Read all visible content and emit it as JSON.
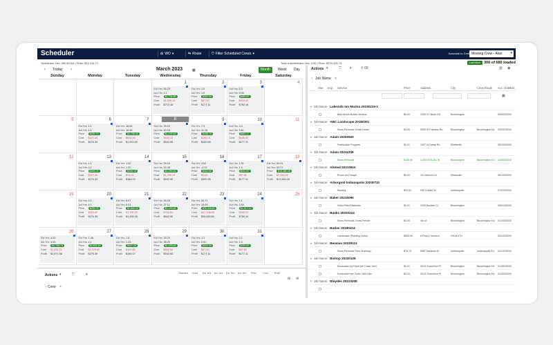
{
  "app": {
    "title": "Scheduler",
    "toolbar": {
      "wo_label": "WO",
      "route_label": "Route",
      "filter_label": "Filter Scheduled Crews"
    },
    "schedule_to_label": "Schedule to Crew",
    "crew_select_value": "Mowing Crew - Alan"
  },
  "summary": {
    "scheduled": "Scheduled:  Hrs. 460.83 hrs  |  Price: $71,214.71",
    "unscheduled": "Total Unscheduled:  Hrs. 0.00  |  Price: $734,476.74",
    "load_more": "Load More",
    "loaded": "300 of 680 loaded"
  },
  "calendar": {
    "today_label": "Today",
    "month_title": "March 2023",
    "views": [
      "Month",
      "Week",
      "Day"
    ],
    "weekdays": [
      "Sunday",
      "Monday",
      "Tuesday",
      "Wednesday",
      "Thursday",
      "Friday",
      "Saturday"
    ],
    "weeks": [
      [
        "",
        "",
        "",
        "1",
        "2",
        "3",
        "4"
      ],
      [
        "5",
        "6",
        "7",
        "8",
        "9",
        "10",
        "11"
      ],
      [
        "12",
        "13",
        "14",
        "15",
        "16",
        "17",
        "18"
      ],
      [
        "19",
        "20",
        "21",
        "22",
        "23",
        "24",
        "25"
      ],
      [
        "26",
        "27",
        "28",
        "29",
        "30",
        "31",
        ""
      ]
    ],
    "stats": {
      "0-3": [
        "55.23",
        "4.1",
        "$3,794.85",
        "$1,035.10",
        "$713.18"
      ],
      "0-4": [
        "1.9",
        "1.9",
        "$302.00",
        "$97.50",
        "$177.11"
      ],
      "0-5": [
        "8.3",
        "5.35",
        "$960.87",
        "$315.45",
        "$783.16"
      ],
      "1-1": [
        "4.1",
        "4.1",
        "$395.79",
        "$119.40",
        "$276.39"
      ],
      "1-2": [
        "16.64",
        "16.45",
        "$2,798.65",
        "$664.40",
        "$1,533.30"
      ],
      "1-3": [
        "39.29",
        "40.26",
        "$1,199.46",
        "$544.16",
        "$542.55"
      ],
      "1-4": [
        "7.9",
        "11.15",
        "$438.75",
        "$196.01",
        "$400.85"
      ],
      "1-5": [
        "3.4",
        "3.61",
        "$552.17",
        "$186.00",
        "$177.11"
      ],
      "2-1": [
        "4.1",
        "4.1",
        "$395.79",
        "$119.40",
        "$276.39"
      ],
      "2-2": [
        "1.32",
        "1.32",
        "$208.13",
        "$74.02",
        "$184.02"
      ],
      "2-3": [
        "39.29",
        "40.45",
        "$2,299.46",
        "$1,795.14",
        "$542.55"
      ],
      "2-4": [
        "3.61",
        "-0.02",
        "$402.00",
        "$0.00",
        "$400.85"
      ],
      "2-5": [
        "1.91",
        "1.9",
        "$240.87",
        "$97.50",
        "$177.11"
      ],
      "2-6": [
        "54.41",
        "52.27",
        "$15,380.00",
        "$2,495.00",
        "$12,884.00"
      ],
      "3-1": [
        "4.1",
        "4.1",
        "$395.79",
        "$119.40",
        "$276.39"
      ],
      "3-2": [
        "6.07",
        "6.03",
        "$1,800.34",
        "$1,130.20",
        "$1,435.35"
      ],
      "3-3": [
        "39.29",
        "37.11",
        "$1,199.46",
        "$764.62",
        "$542.55"
      ],
      "3-4": [
        "34.71",
        "15.09",
        "$30,446.81",
        "$17,198.00",
        "$26,483.81"
      ],
      "3-5": [
        "2.1",
        "2.55",
        "$1,317.13",
        "$530.72",
        "$785.10"
      ],
      "4-0": [
        "3.03",
        "3.03",
        "$4,758.75",
        "$1,432.22",
        "$2,871.58"
      ],
      "4-1": [
        "7.46",
        "4.1",
        "$2,502.18",
        "$2,029.50",
        "$276.39"
      ],
      "4-2": [
        "1.5",
        "1.33",
        "$427.28",
        "$100.85",
        "$184.07"
      ],
      "4-3": [
        "39.29",
        "38.20",
        "$1,199.46",
        "$552.60",
        "$542.55"
      ],
      "4-4": [
        "1.1",
        "0.92",
        "$322.00",
        "$97.50",
        "$177.11"
      ],
      "4-5": [
        "2.1",
        "2.3",
        "$240.87",
        "$97.50",
        "$177.11"
      ]
    }
  },
  "bottom": {
    "actions_label": "Actions",
    "columns": [
      "Selected",
      "Crew",
      "Est. Hrs",
      "Act. Hrs",
      "Est. Hrs",
      "Act. Hrs",
      "Price",
      "Cost",
      "Profit"
    ],
    "crew_label": "Crew"
  },
  "right": {
    "actions_label": "Actions",
    "count": "68",
    "jobname_label": "Job Name",
    "columns": [
      "Star",
      "Imp",
      "Service",
      "Price",
      "Address",
      "City",
      "Crew Route",
      "Acc. Date",
      "Est."
    ],
    "group_prefix": "Job Name:",
    "groups": [
      {
        "name": "Lakeside Inn Marina 20230215-1",
        "items": [
          {
            "service": "Bark Mulch Bustle Medium",
            "price": "$0.00",
            "address": "1000 S Fairlee Rd",
            "city": "Bloomington",
            "route": "",
            "date": "05/06/2023",
            "est": "0"
          }
        ]
      },
      {
        "name": "ABC Landscape 20190301",
        "items": [
          {
            "service": "Snow Removal–Snow Fester",
            "price": "$0.00",
            "address": "5005 W Fairview Rd",
            "city": "Bloomington",
            "route": "Bloomington Ea",
            "date": "03/03/2023",
            "est": "0"
          }
        ]
      },
      {
        "name": "Adam 20200920",
        "items": [
          {
            "service": "Fertilization Program",
            "price": "$0.00",
            "address": "1057 W Delap Rd",
            "city": "Ellettsville",
            "route": "",
            "date": "05/20/2023",
            "est": "0"
          }
        ]
      },
      {
        "name": "Adam 20211208",
        "items": [
          {
            "service": "Snow Removal",
            "price": "$100.00",
            "address": "2,000.00 $ 261 W",
            "city": "Bloomington",
            "route": "Bloomington Ea",
            "date": "12/08/2021",
            "est": "0",
            "green": true
          }
        ]
      },
      {
        "name": "Ahmed 20210510",
        "items": [
          {
            "service": "Prune and Shape",
            "price": "$0.00",
            "address": "101 Allwood Dr",
            "city": "Ellettsville",
            "route": "",
            "date": "05/10/2023",
            "est": "0"
          }
        ]
      },
      {
        "name": "Arborgold Indianapolis 20230731",
        "items": [
          {
            "service": "Mowing",
            "price": "$20.00",
            "address": "200 S Main St",
            "city": "Indianapolis",
            "route": "",
            "date": "07/31/2023",
            "est": "0"
          }
        ]
      },
      {
        "name": "Baker 20210090",
        "items": [
          {
            "service": "Other Plant Materials",
            "price": "$0.00",
            "address": "2005 Boulder Ct",
            "city": "Bloomington",
            "route": "",
            "date": "09/01/2023",
            "est": "0"
          }
        ]
      },
      {
        "name": "Banks 20200124",
        "items": [
          {
            "service": "Snow Removal–Snow Feeder",
            "price": "$0.00",
            "address": "3rd st",
            "city": "Bloomington",
            "route": "Bloomington Ea",
            "date": "01/24/2023",
            "est": "0"
          }
        ]
      },
      {
        "name": "Barker 20190424",
        "items": [
          {
            "service": "Landscape (Planting Labor)",
            "price": "$500.00",
            "address": "8 Priory Crescent",
            "city": "DN15 6TS",
            "route": "",
            "date": "04/24/2023",
            "est": "0"
          }
        ]
      },
      {
        "name": "Beaman 20220113",
        "items": [
          {
            "service": "Snow Removal Plow Driveway",
            "price": "$75.75",
            "address": "5587 Meadow Dr",
            "city": "Indianapolis",
            "route": "Indianapolis Ea",
            "date": "01/13/2023",
            "est": "0"
          }
        ]
      },
      {
        "name": "Bishop 20220128",
        "items": [
          {
            "service": "Excavation by Hand per Cubic Yard",
            "price": "$0.00",
            "address": "2015 Grosvenor Pl",
            "city": "Bloomington",
            "route": "Bloomington Ea",
            "date": "01/28/2023",
            "est": "0"
          },
          {
            "service": "Excavation per Cubic Yard with",
            "price": "$0.00",
            "address": "2015 Grosvenor Pl",
            "city": "Bloomington",
            "route": "Bloomington Ea",
            "date": "01/28/2023",
            "est": "0"
          }
        ]
      },
      {
        "name": "Blaydes 20210208",
        "items": [
          {
            "service": "",
            "price": "",
            "address": "",
            "city": "",
            "route": "",
            "date": "",
            "est": ""
          }
        ]
      }
    ]
  }
}
